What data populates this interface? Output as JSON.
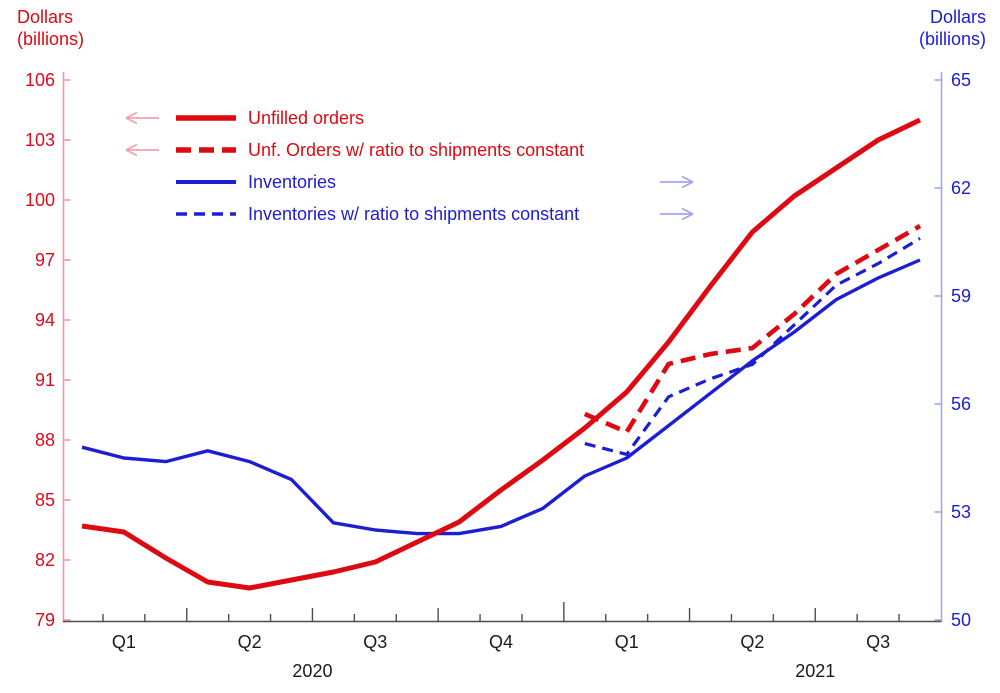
{
  "titles": {
    "left_axis_line1": "Dollars",
    "left_axis_line2": "(billions)",
    "right_axis_line1": "Dollars",
    "right_axis_line2": "(billions)"
  },
  "legend": {
    "items": [
      {
        "label": "Unfilled orders",
        "style": "solid",
        "color": "#dd0a12",
        "arrow": "left"
      },
      {
        "label": "Unf. Orders w/ ratio to shipments constant",
        "style": "dashed",
        "color": "#dd0a12",
        "arrow": "left"
      },
      {
        "label": "Inventories",
        "style": "solid",
        "color": "#1d1dd2",
        "arrow": "right"
      },
      {
        "label": "Inventories w/ ratio to shipments constant",
        "style": "dashed",
        "color": "#1d1dd2",
        "arrow": "right"
      }
    ],
    "arrow_left_color": "#f2a3ab",
    "arrow_right_color": "#9fa6ef"
  },
  "chart_data": {
    "type": "line",
    "x": [
      "Jan 2020",
      "Feb 2020",
      "Mar 2020",
      "Apr 2020",
      "May 2020",
      "Jun 2020",
      "Jul 2020",
      "Aug 2020",
      "Sep 2020",
      "Oct 2020",
      "Nov 2020",
      "Dec 2020",
      "Jan 2021",
      "Feb 2021",
      "Mar 2021",
      "Apr 2021",
      "May 2021",
      "Jun 2021",
      "Jul 2021",
      "Aug 2021",
      "Sep 2021"
    ],
    "left_axis": {
      "label": "Dollars (billions)",
      "ticks": [
        106,
        103,
        100,
        97,
        94,
        91,
        88,
        85,
        82,
        79
      ],
      "min": 79,
      "max": 106,
      "text_color": "#dd0a1e",
      "line_color": "#f2959f"
    },
    "right_axis": {
      "label": "Dollars (billions)",
      "ticks": [
        65,
        62,
        59,
        56,
        53,
        50
      ],
      "min": 50,
      "max": 65,
      "text_color": "#1d1dd2",
      "line_color": "#9fa6ef"
    },
    "x_axis": {
      "line_color": "#4d4d4d",
      "label_color": "#1a1a1a",
      "boundary_tick_types": [
        "month",
        "month",
        "quarter",
        "month",
        "month",
        "quarter",
        "month",
        "month",
        "quarter",
        "month",
        "month",
        "year",
        "month",
        "month",
        "quarter",
        "month",
        "month",
        "quarter",
        "month",
        "month"
      ],
      "quarter_labels": [
        {
          "text": "Q1",
          "month_index": 1
        },
        {
          "text": "Q2",
          "month_index": 4
        },
        {
          "text": "Q3",
          "month_index": 7
        },
        {
          "text": "Q4",
          "month_index": 10
        },
        {
          "text": "Q1",
          "month_index": 13
        },
        {
          "text": "Q2",
          "month_index": 16
        },
        {
          "text": "Q3",
          "month_index": 19
        }
      ],
      "year_labels": [
        {
          "text": "2020",
          "x_index": 5.5
        },
        {
          "text": "2021",
          "x_index": 17.5
        }
      ]
    },
    "series": [
      {
        "name": "Inventories",
        "axis": "right",
        "color": "#1d1dd2",
        "style": "solid",
        "width": 3.4,
        "dash": null,
        "values": [
          54.8,
          54.5,
          54.4,
          54.7,
          54.4,
          53.9,
          52.7,
          52.5,
          52.4,
          52.4,
          52.6,
          53.1,
          54.0,
          54.5,
          55.4,
          56.3,
          57.2,
          58.0,
          58.9,
          59.5,
          60.0
        ]
      },
      {
        "name": "Inventories w/ ratio to shipments constant",
        "axis": "right",
        "color": "#1d1dd2",
        "style": "dashed",
        "width": 3.2,
        "dash": "11 7",
        "values": [
          null,
          null,
          null,
          null,
          null,
          null,
          null,
          null,
          null,
          null,
          null,
          null,
          54.9,
          54.6,
          56.2,
          56.7,
          57.1,
          58.2,
          59.3,
          59.9,
          60.6
        ]
      },
      {
        "name": "Unf. Orders w/ ratio to shipments constant",
        "axis": "left",
        "color": "#dd0a12",
        "style": "dashed",
        "width": 4.6,
        "dash": "15 8",
        "values": [
          null,
          null,
          null,
          null,
          null,
          null,
          null,
          null,
          null,
          null,
          null,
          null,
          89.3,
          88.4,
          91.8,
          92.3,
          92.6,
          94.3,
          96.3,
          97.5,
          98.7
        ]
      },
      {
        "name": "Unfilled orders",
        "axis": "left",
        "color": "#dd0a12",
        "style": "solid",
        "width": 5,
        "dash": null,
        "values": [
          83.7,
          83.4,
          82.1,
          80.9,
          80.6,
          81.0,
          81.4,
          81.9,
          82.9,
          83.9,
          85.5,
          87.0,
          88.6,
          90.4,
          92.9,
          95.7,
          98.4,
          100.2,
          101.6,
          103.0,
          104.0
        ]
      }
    ]
  }
}
